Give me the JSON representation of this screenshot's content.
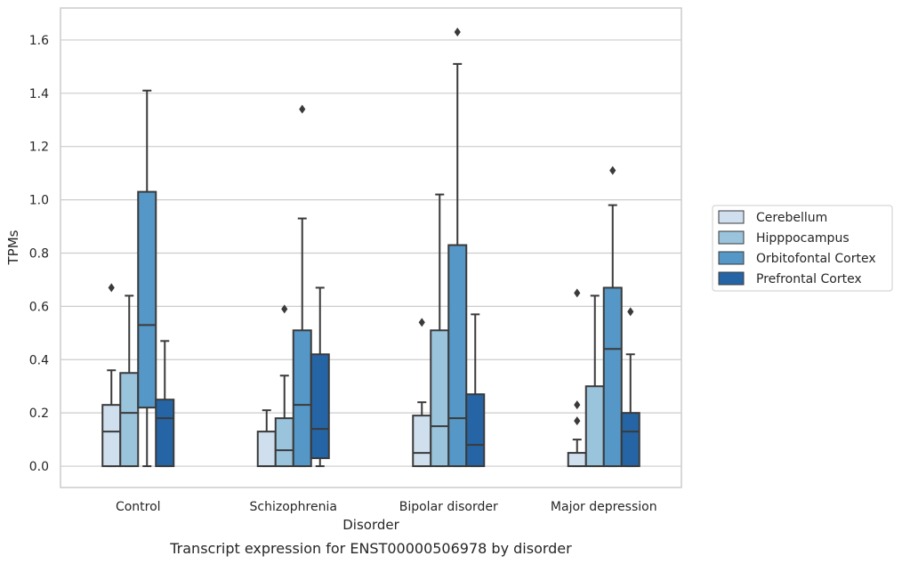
{
  "chart_data": {
    "type": "box",
    "title": "",
    "caption": "Transcript expression for ENST00000506978 by disorder",
    "xlabel": "Disorder",
    "ylabel": "TPMs",
    "ylim": [
      -0.08,
      1.72
    ],
    "yticks": [
      "0.0",
      "0.2",
      "0.4",
      "0.6",
      "0.8",
      "1.0",
      "1.2",
      "1.4",
      "1.6"
    ],
    "categories": [
      "Control",
      "Schizophrenia",
      "Bipolar disorder",
      "Major depression"
    ],
    "grid": "horizontal",
    "legend_position": "right",
    "series": [
      {
        "name": "Cerebellum",
        "color": "#cfdfee",
        "boxes": [
          {
            "whislo": 0.0,
            "q1": 0.0,
            "med": 0.13,
            "q3": 0.23,
            "whishi": 0.36,
            "fliers": [
              0.67
            ]
          },
          {
            "whislo": 0.0,
            "q1": 0.0,
            "med": 0.0,
            "q3": 0.13,
            "whishi": 0.21,
            "fliers": []
          },
          {
            "whislo": 0.0,
            "q1": 0.0,
            "med": 0.05,
            "q3": 0.19,
            "whishi": 0.24,
            "fliers": [
              0.54
            ]
          },
          {
            "whislo": 0.0,
            "q1": 0.0,
            "med": 0.0,
            "q3": 0.05,
            "whishi": 0.1,
            "fliers": [
              0.17,
              0.23,
              0.65
            ]
          }
        ]
      },
      {
        "name": "Hipppocampus",
        "color": "#9ac3dc",
        "boxes": [
          {
            "whislo": 0.0,
            "q1": 0.0,
            "med": 0.2,
            "q3": 0.35,
            "whishi": 0.64,
            "fliers": []
          },
          {
            "whislo": 0.0,
            "q1": 0.0,
            "med": 0.06,
            "q3": 0.18,
            "whishi": 0.34,
            "fliers": [
              0.59
            ]
          },
          {
            "whislo": 0.0,
            "q1": 0.0,
            "med": 0.15,
            "q3": 0.51,
            "whishi": 1.02,
            "fliers": []
          },
          {
            "whislo": 0.0,
            "q1": 0.0,
            "med": 0.0,
            "q3": 0.3,
            "whishi": 0.64,
            "fliers": []
          }
        ]
      },
      {
        "name": "Orbitofontal Cortex",
        "color": "#5597c6",
        "boxes": [
          {
            "whislo": 0.0,
            "q1": 0.22,
            "med": 0.53,
            "q3": 1.03,
            "whishi": 1.41,
            "fliers": []
          },
          {
            "whislo": 0.0,
            "q1": 0.0,
            "med": 0.23,
            "q3": 0.51,
            "whishi": 0.93,
            "fliers": [
              1.34
            ]
          },
          {
            "whislo": 0.0,
            "q1": 0.0,
            "med": 0.18,
            "q3": 0.83,
            "whishi": 1.51,
            "fliers": [
              1.63
            ]
          },
          {
            "whislo": 0.0,
            "q1": 0.0,
            "med": 0.44,
            "q3": 0.67,
            "whishi": 0.98,
            "fliers": [
              1.11
            ]
          }
        ]
      },
      {
        "name": "Prefrontal Cortex",
        "color": "#2565a5",
        "boxes": [
          {
            "whislo": 0.0,
            "q1": 0.0,
            "med": 0.18,
            "q3": 0.25,
            "whishi": 0.47,
            "fliers": []
          },
          {
            "whislo": 0.0,
            "q1": 0.03,
            "med": 0.14,
            "q3": 0.42,
            "whishi": 0.67,
            "fliers": []
          },
          {
            "whislo": 0.0,
            "q1": 0.0,
            "med": 0.08,
            "q3": 0.27,
            "whishi": 0.57,
            "fliers": []
          },
          {
            "whislo": 0.0,
            "q1": 0.0,
            "med": 0.13,
            "q3": 0.2,
            "whishi": 0.42,
            "fliers": [
              0.58
            ]
          }
        ]
      }
    ],
    "colors": {
      "line": "#3a3a3a",
      "grid": "#cccccc",
      "frame": "#cccccc"
    }
  }
}
